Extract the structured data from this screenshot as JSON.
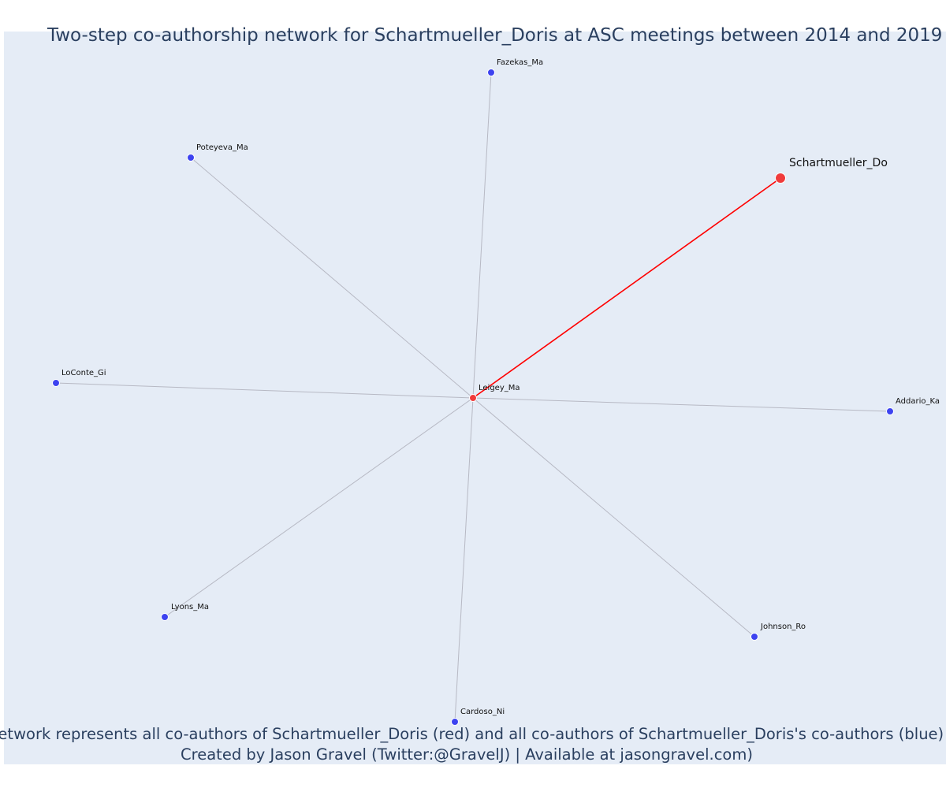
{
  "title": "Two-step co-authorship network for Schartmueller_Doris at ASC meetings between 2014 and 2019",
  "footer": {
    "line1": "Network represents all co-authors of Schartmueller_Doris (red) and all co-authors of Schartmueller_Doris's co-authors (blue)",
    "line2": "Created by Jason Gravel (Twitter:@GravelJ) | Available at jasongravel.com)"
  },
  "colors": {
    "plot_background": "#e5ecf6",
    "focus_node": "#f03b3b",
    "coauthor_node": "#f03b3b",
    "second_step_node": "#3d43f0",
    "direct_edge": "#ff0000",
    "indirect_edge": "#b7b9c4"
  },
  "network": {
    "focus": "Schartmueller_Do",
    "nodes": [
      {
        "id": "Schartmueller_Do",
        "label": "Schartmueller_Do",
        "group": "focus"
      },
      {
        "id": "Leigey_Ma",
        "label": "Leigey_Ma",
        "group": "coauthor"
      },
      {
        "id": "Fazekas_Ma",
        "label": "Fazekas_Ma",
        "group": "second-step"
      },
      {
        "id": "Poteyeva_Ma",
        "label": "Poteyeva_Ma",
        "group": "second-step"
      },
      {
        "id": "LoConte_Gi",
        "label": "LoConte_Gi",
        "group": "second-step"
      },
      {
        "id": "Addario_Ka",
        "label": "Addario_Ka",
        "group": "second-step"
      },
      {
        "id": "Lyons_Ma",
        "label": "Lyons_Ma",
        "group": "second-step"
      },
      {
        "id": "Johnson_Ro",
        "label": "Johnson_Ro",
        "group": "second-step"
      },
      {
        "id": "Cardoso_Ni",
        "label": "Cardoso_Ni",
        "group": "second-step"
      }
    ],
    "edges": [
      {
        "source": "Leigey_Ma",
        "target": "Schartmueller_Do",
        "type": "direct"
      },
      {
        "source": "Leigey_Ma",
        "target": "Fazekas_Ma",
        "type": "indirect"
      },
      {
        "source": "Leigey_Ma",
        "target": "Poteyeva_Ma",
        "type": "indirect"
      },
      {
        "source": "Leigey_Ma",
        "target": "LoConte_Gi",
        "type": "indirect"
      },
      {
        "source": "Leigey_Ma",
        "target": "Addario_Ka",
        "type": "indirect"
      },
      {
        "source": "Leigey_Ma",
        "target": "Lyons_Ma",
        "type": "indirect"
      },
      {
        "source": "Leigey_Ma",
        "target": "Johnson_Ro",
        "type": "indirect"
      },
      {
        "source": "Leigey_Ma",
        "target": "Cardoso_Ni",
        "type": "indirect"
      }
    ]
  }
}
